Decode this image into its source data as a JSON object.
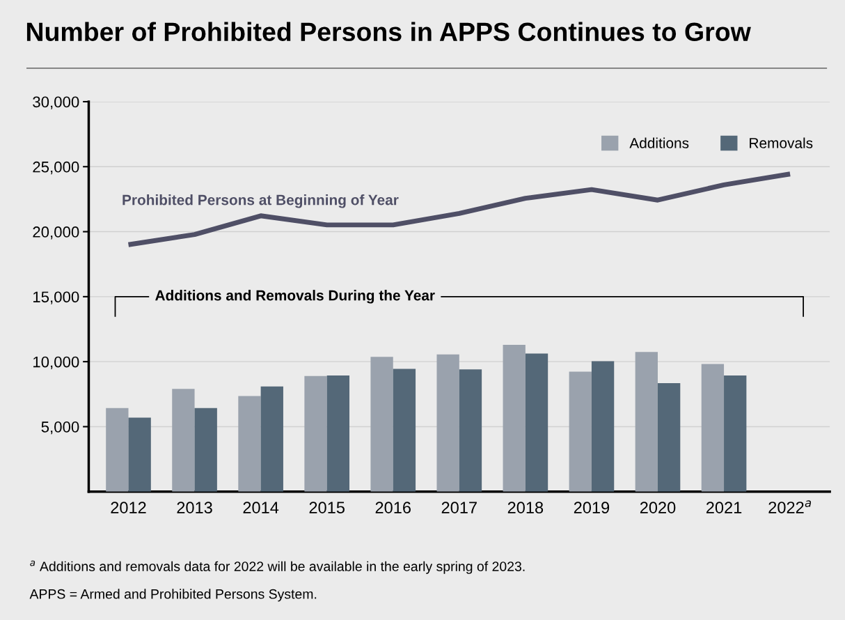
{
  "chart_data": {
    "type": "bar",
    "title": "Number of Prohibited Persons in APPS Continues to Grow",
    "categories": [
      "2012",
      "2013",
      "2014",
      "2015",
      "2016",
      "2017",
      "2018",
      "2019",
      "2020",
      "2021",
      "2022$^{a}$"
    ],
    "series": [
      {
        "name": "Prohibited Persons at Beginning of Year",
        "type": "line",
        "color": "#4f4f66",
        "values": [
          19000,
          19780,
          21220,
          20520,
          20520,
          21400,
          22570,
          23240,
          22430,
          23600,
          24440
        ]
      },
      {
        "name": "Additions",
        "color": "#9aa2ad",
        "values": [
          6430,
          7900,
          7360,
          8900,
          10370,
          10560,
          11290,
          9230,
          10740,
          9820,
          null
        ]
      },
      {
        "name": "Removals",
        "color": "#546878",
        "values": [
          5700,
          6430,
          8090,
          8940,
          9450,
          9410,
          10630,
          10040,
          8350,
          8940,
          null
        ]
      }
    ],
    "ylim": [
      0,
      30000
    ],
    "yticks": [
      {
        "value": 5000,
        "label": "5,000"
      },
      {
        "value": 10000,
        "label": "10,000"
      },
      {
        "value": 15000,
        "label": "15,000"
      },
      {
        "value": 20000,
        "label": "20,000"
      },
      {
        "value": 25000,
        "label": "25,000"
      },
      {
        "value": 30000,
        "label": "30,000"
      }
    ],
    "grid": "y",
    "legend": "top right",
    "annotations": [
      "Additions and Removals During the Year",
      "$^{a}$ Additions and removals data for 2022 will be available in the early spring of 2023.",
      "APPS = Armed and Prohibited Persons System."
    ]
  }
}
